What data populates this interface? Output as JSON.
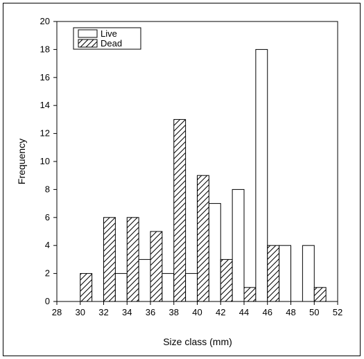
{
  "chart_data": {
    "type": "bar",
    "xlabel": "Size class (mm)",
    "ylabel": "Frequency",
    "xlim": [
      28,
      52
    ],
    "ylim": [
      0,
      20
    ],
    "xticks": [
      28,
      30,
      32,
      34,
      36,
      38,
      40,
      42,
      44,
      46,
      48,
      50,
      52
    ],
    "yticks": [
      0,
      2,
      4,
      6,
      8,
      10,
      12,
      14,
      16,
      18,
      20
    ],
    "grid": false,
    "legend": "top-left",
    "categories": [
      30,
      32,
      34,
      36,
      38,
      40,
      42,
      44,
      46,
      48,
      50
    ],
    "series": [
      {
        "name": "Live",
        "fill": "#ffffff",
        "pattern": "none",
        "values": [
          0,
          0,
          2,
          3,
          2,
          2,
          7,
          8,
          18,
          4,
          4
        ]
      },
      {
        "name": "Dead",
        "fill": "#ffffff",
        "pattern": "hatch",
        "values": [
          2,
          6,
          6,
          5,
          13,
          9,
          3,
          1,
          4,
          0,
          1
        ]
      }
    ]
  }
}
